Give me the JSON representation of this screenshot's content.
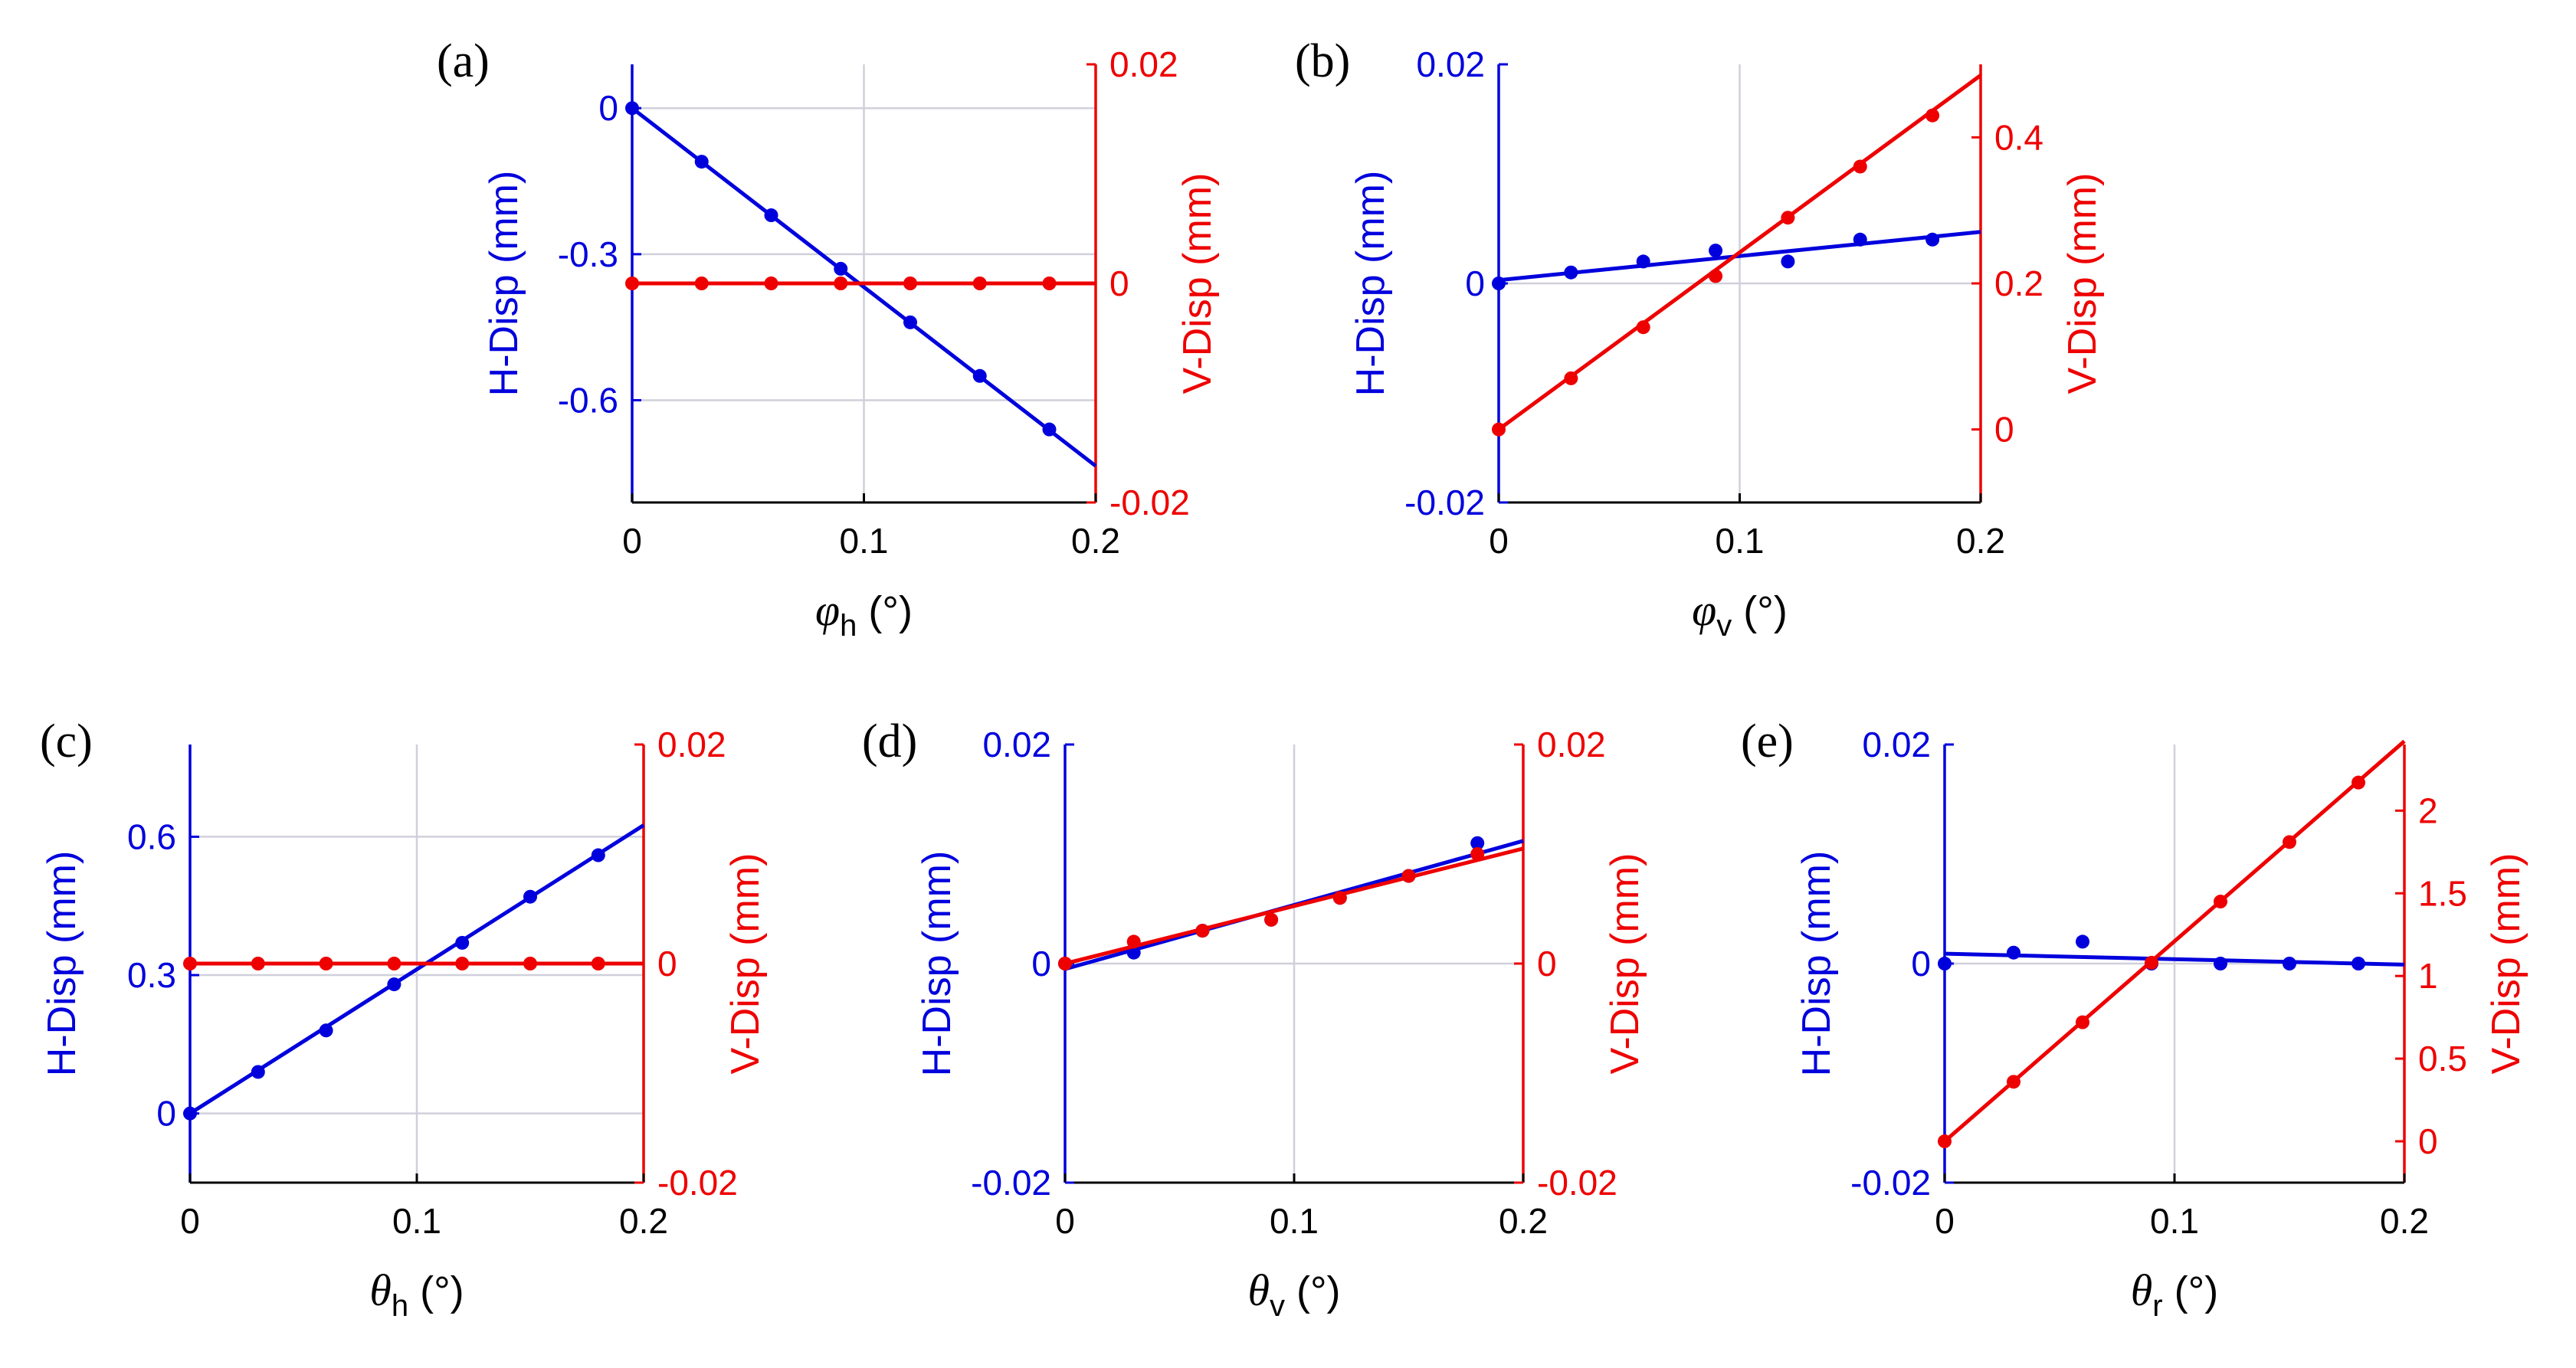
{
  "colors": {
    "h": "#0000dd",
    "v": "#ee0000",
    "grid": "#d0d0dc"
  },
  "chart_data": [
    {
      "type": "line",
      "panel": "(a)",
      "xsym": "φ",
      "xsub": "h",
      "xunit": " (°)",
      "ylabel": "H-Disp (mm)",
      "y2label": "V-Disp (mm)",
      "xlim": [
        0,
        0.2
      ],
      "ylim": [
        -0.81,
        0.09
      ],
      "y2lim": [
        -0.02,
        0.02
      ],
      "xticks": [
        0,
        0.1,
        0.2
      ],
      "xtick_labels": [
        "0",
        "0.1",
        "0.2"
      ],
      "yticks": [
        0,
        -0.3,
        -0.6
      ],
      "ytick_labels": [
        "0",
        "-0.3",
        "-0.6"
      ],
      "y2ticks": [
        0.02,
        0,
        -0.02
      ],
      "y2tick_labels": [
        "0.02",
        "0",
        "-0.02"
      ],
      "hgrid": [
        0,
        -0.3,
        -0.6
      ],
      "vgrid": [
        0.1
      ],
      "series": [
        {
          "name": "H-Disp",
          "axis": "left",
          "x": [
            0,
            0.03,
            0.06,
            0.09,
            0.12,
            0.15,
            0.18
          ],
          "y": [
            0,
            -0.11,
            -0.22,
            -0.33,
            -0.44,
            -0.55,
            -0.66
          ],
          "fit": [
            [
              0,
              0
            ],
            [
              0.2,
              -0.735
            ]
          ]
        },
        {
          "name": "V-Disp",
          "axis": "right",
          "x": [
            0,
            0.03,
            0.06,
            0.09,
            0.12,
            0.15,
            0.18
          ],
          "y": [
            0,
            0,
            0,
            0,
            0,
            0,
            0
          ],
          "fit": [
            [
              0,
              0
            ],
            [
              0.2,
              0
            ]
          ]
        }
      ]
    },
    {
      "type": "line",
      "panel": "(b)",
      "xsym": "φ",
      "xsub": "v",
      "xunit": " (°)",
      "ylabel": "H-Disp (mm)",
      "y2label": "V-Disp (mm)",
      "xlim": [
        0,
        0.2
      ],
      "ylim": [
        -0.02,
        0.02
      ],
      "y2lim": [
        -0.1,
        0.5
      ],
      "xticks": [
        0,
        0.1,
        0.2
      ],
      "xtick_labels": [
        "0",
        "0.1",
        "0.2"
      ],
      "yticks": [
        0.02,
        0,
        -0.02
      ],
      "ytick_labels": [
        "0.02",
        "0",
        "-0.02"
      ],
      "y2ticks": [
        0,
        0.2,
        0.4
      ],
      "y2tick_labels": [
        "0",
        "0.2",
        "0.4"
      ],
      "hgrid": [
        0
      ],
      "vgrid": [
        0.1
      ],
      "series": [
        {
          "name": "H-Disp",
          "axis": "left",
          "x": [
            0,
            0.03,
            0.06,
            0.09,
            0.12,
            0.15,
            0.18
          ],
          "y": [
            0,
            0.001,
            0.002,
            0.003,
            0.002,
            0.004,
            0.004
          ],
          "fit": [
            [
              0,
              0.0003
            ],
            [
              0.2,
              0.0047
            ]
          ]
        },
        {
          "name": "V-Disp",
          "axis": "right",
          "x": [
            0,
            0.03,
            0.06,
            0.09,
            0.12,
            0.15,
            0.18
          ],
          "y": [
            0,
            0.07,
            0.14,
            0.21,
            0.29,
            0.36,
            0.43
          ],
          "fit": [
            [
              0,
              0
            ],
            [
              0.2,
              0.485
            ]
          ]
        }
      ]
    },
    {
      "type": "line",
      "panel": "(c)",
      "xsym": "θ",
      "xsub": "h",
      "xunit": " (°)",
      "ylabel": "H-Disp (mm)",
      "y2label": "V-Disp (mm)",
      "xlim": [
        0,
        0.2
      ],
      "ylim": [
        -0.15,
        0.8
      ],
      "y2lim": [
        -0.02,
        0.02
      ],
      "xticks": [
        0,
        0.1,
        0.2
      ],
      "xtick_labels": [
        "0",
        "0.1",
        "0.2"
      ],
      "yticks": [
        0.6,
        0.3,
        0
      ],
      "ytick_labels": [
        "0.6",
        "0.3",
        "0"
      ],
      "y2ticks": [
        0.02,
        0,
        -0.02
      ],
      "y2tick_labels": [
        "0.02",
        "0",
        "-0.02"
      ],
      "hgrid": [
        0.6,
        0.3,
        0
      ],
      "vgrid": [
        0.1
      ],
      "series": [
        {
          "name": "H-Disp",
          "axis": "left",
          "x": [
            0,
            0.03,
            0.06,
            0.09,
            0.12,
            0.15,
            0.18
          ],
          "y": [
            0,
            0.09,
            0.18,
            0.28,
            0.37,
            0.47,
            0.56
          ],
          "fit": [
            [
              0,
              0
            ],
            [
              0.2,
              0.625
            ]
          ]
        },
        {
          "name": "V-Disp",
          "axis": "right",
          "x": [
            0,
            0.03,
            0.06,
            0.09,
            0.12,
            0.15,
            0.18
          ],
          "y": [
            0,
            0,
            0,
            0,
            0,
            0,
            0
          ],
          "fit": [
            [
              0,
              0
            ],
            [
              0.2,
              0
            ]
          ]
        }
      ]
    },
    {
      "type": "line",
      "panel": "(d)",
      "xsym": "θ",
      "xsub": "v",
      "xunit": " (°)",
      "ylabel": "H-Disp (mm)",
      "y2label": "V-Disp (mm)",
      "xlim": [
        0,
        0.2
      ],
      "ylim": [
        -0.02,
        0.02
      ],
      "y2lim": [
        -0.02,
        0.02
      ],
      "xticks": [
        0,
        0.1,
        0.2
      ],
      "xtick_labels": [
        "0",
        "0.1",
        "0.2"
      ],
      "yticks": [
        0.02,
        0,
        -0.02
      ],
      "ytick_labels": [
        "0.02",
        "0",
        "-0.02"
      ],
      "y2ticks": [
        0.02,
        0,
        -0.02
      ],
      "y2tick_labels": [
        "0.02",
        "0",
        "-0.02"
      ],
      "hgrid": [
        0
      ],
      "vgrid": [
        0.1
      ],
      "series": [
        {
          "name": "H-Disp",
          "axis": "left",
          "x": [
            0,
            0.03,
            0.06,
            0.09,
            0.12,
            0.15,
            0.18
          ],
          "y": [
            0,
            0.001,
            0.003,
            0.004,
            0.006,
            0.008,
            0.011
          ],
          "fit": [
            [
              0,
              -0.0005
            ],
            [
              0.2,
              0.0112
            ]
          ]
        },
        {
          "name": "V-Disp",
          "axis": "right",
          "x": [
            0,
            0.03,
            0.06,
            0.09,
            0.12,
            0.15,
            0.18
          ],
          "y": [
            0,
            0.002,
            0.003,
            0.004,
            0.006,
            0.008,
            0.01
          ],
          "fit": [
            [
              0,
              0
            ],
            [
              0.2,
              0.0105
            ]
          ]
        }
      ]
    },
    {
      "type": "line",
      "panel": "(e)",
      "xsym": "θ",
      "xsub": "r",
      "xunit": " (°)",
      "ylabel": "H-Disp (mm)",
      "y2label": "V-Disp (mm)",
      "xlim": [
        0,
        0.2
      ],
      "ylim": [
        -0.02,
        0.02
      ],
      "y2lim": [
        -0.25,
        2.4
      ],
      "xticks": [
        0,
        0.1,
        0.2
      ],
      "xtick_labels": [
        "0",
        "0.1",
        "0.2"
      ],
      "yticks": [
        0.02,
        0,
        -0.02
      ],
      "ytick_labels": [
        "0.02",
        "0",
        "-0.02"
      ],
      "y2ticks": [
        0,
        0.5,
        1,
        1.5,
        2
      ],
      "y2tick_labels": [
        "0",
        "0.5",
        "1",
        "1.5",
        "2"
      ],
      "hgrid": [
        0
      ],
      "vgrid": [
        0.1
      ],
      "series": [
        {
          "name": "H-Disp",
          "axis": "left",
          "x": [
            0,
            0.03,
            0.06,
            0.09,
            0.12,
            0.15,
            0.18
          ],
          "y": [
            0,
            0.001,
            0.002,
            0,
            0,
            0,
            0
          ],
          "fit": [
            [
              0,
              0.0009
            ],
            [
              0.2,
              -0.0001
            ]
          ]
        },
        {
          "name": "V-Disp",
          "axis": "right",
          "x": [
            0,
            0.03,
            0.06,
            0.09,
            0.12,
            0.15,
            0.18
          ],
          "y": [
            0,
            0.36,
            0.72,
            1.08,
            1.45,
            1.81,
            2.17
          ],
          "fit": [
            [
              0,
              0
            ],
            [
              0.2,
              2.42
            ]
          ]
        }
      ]
    }
  ]
}
